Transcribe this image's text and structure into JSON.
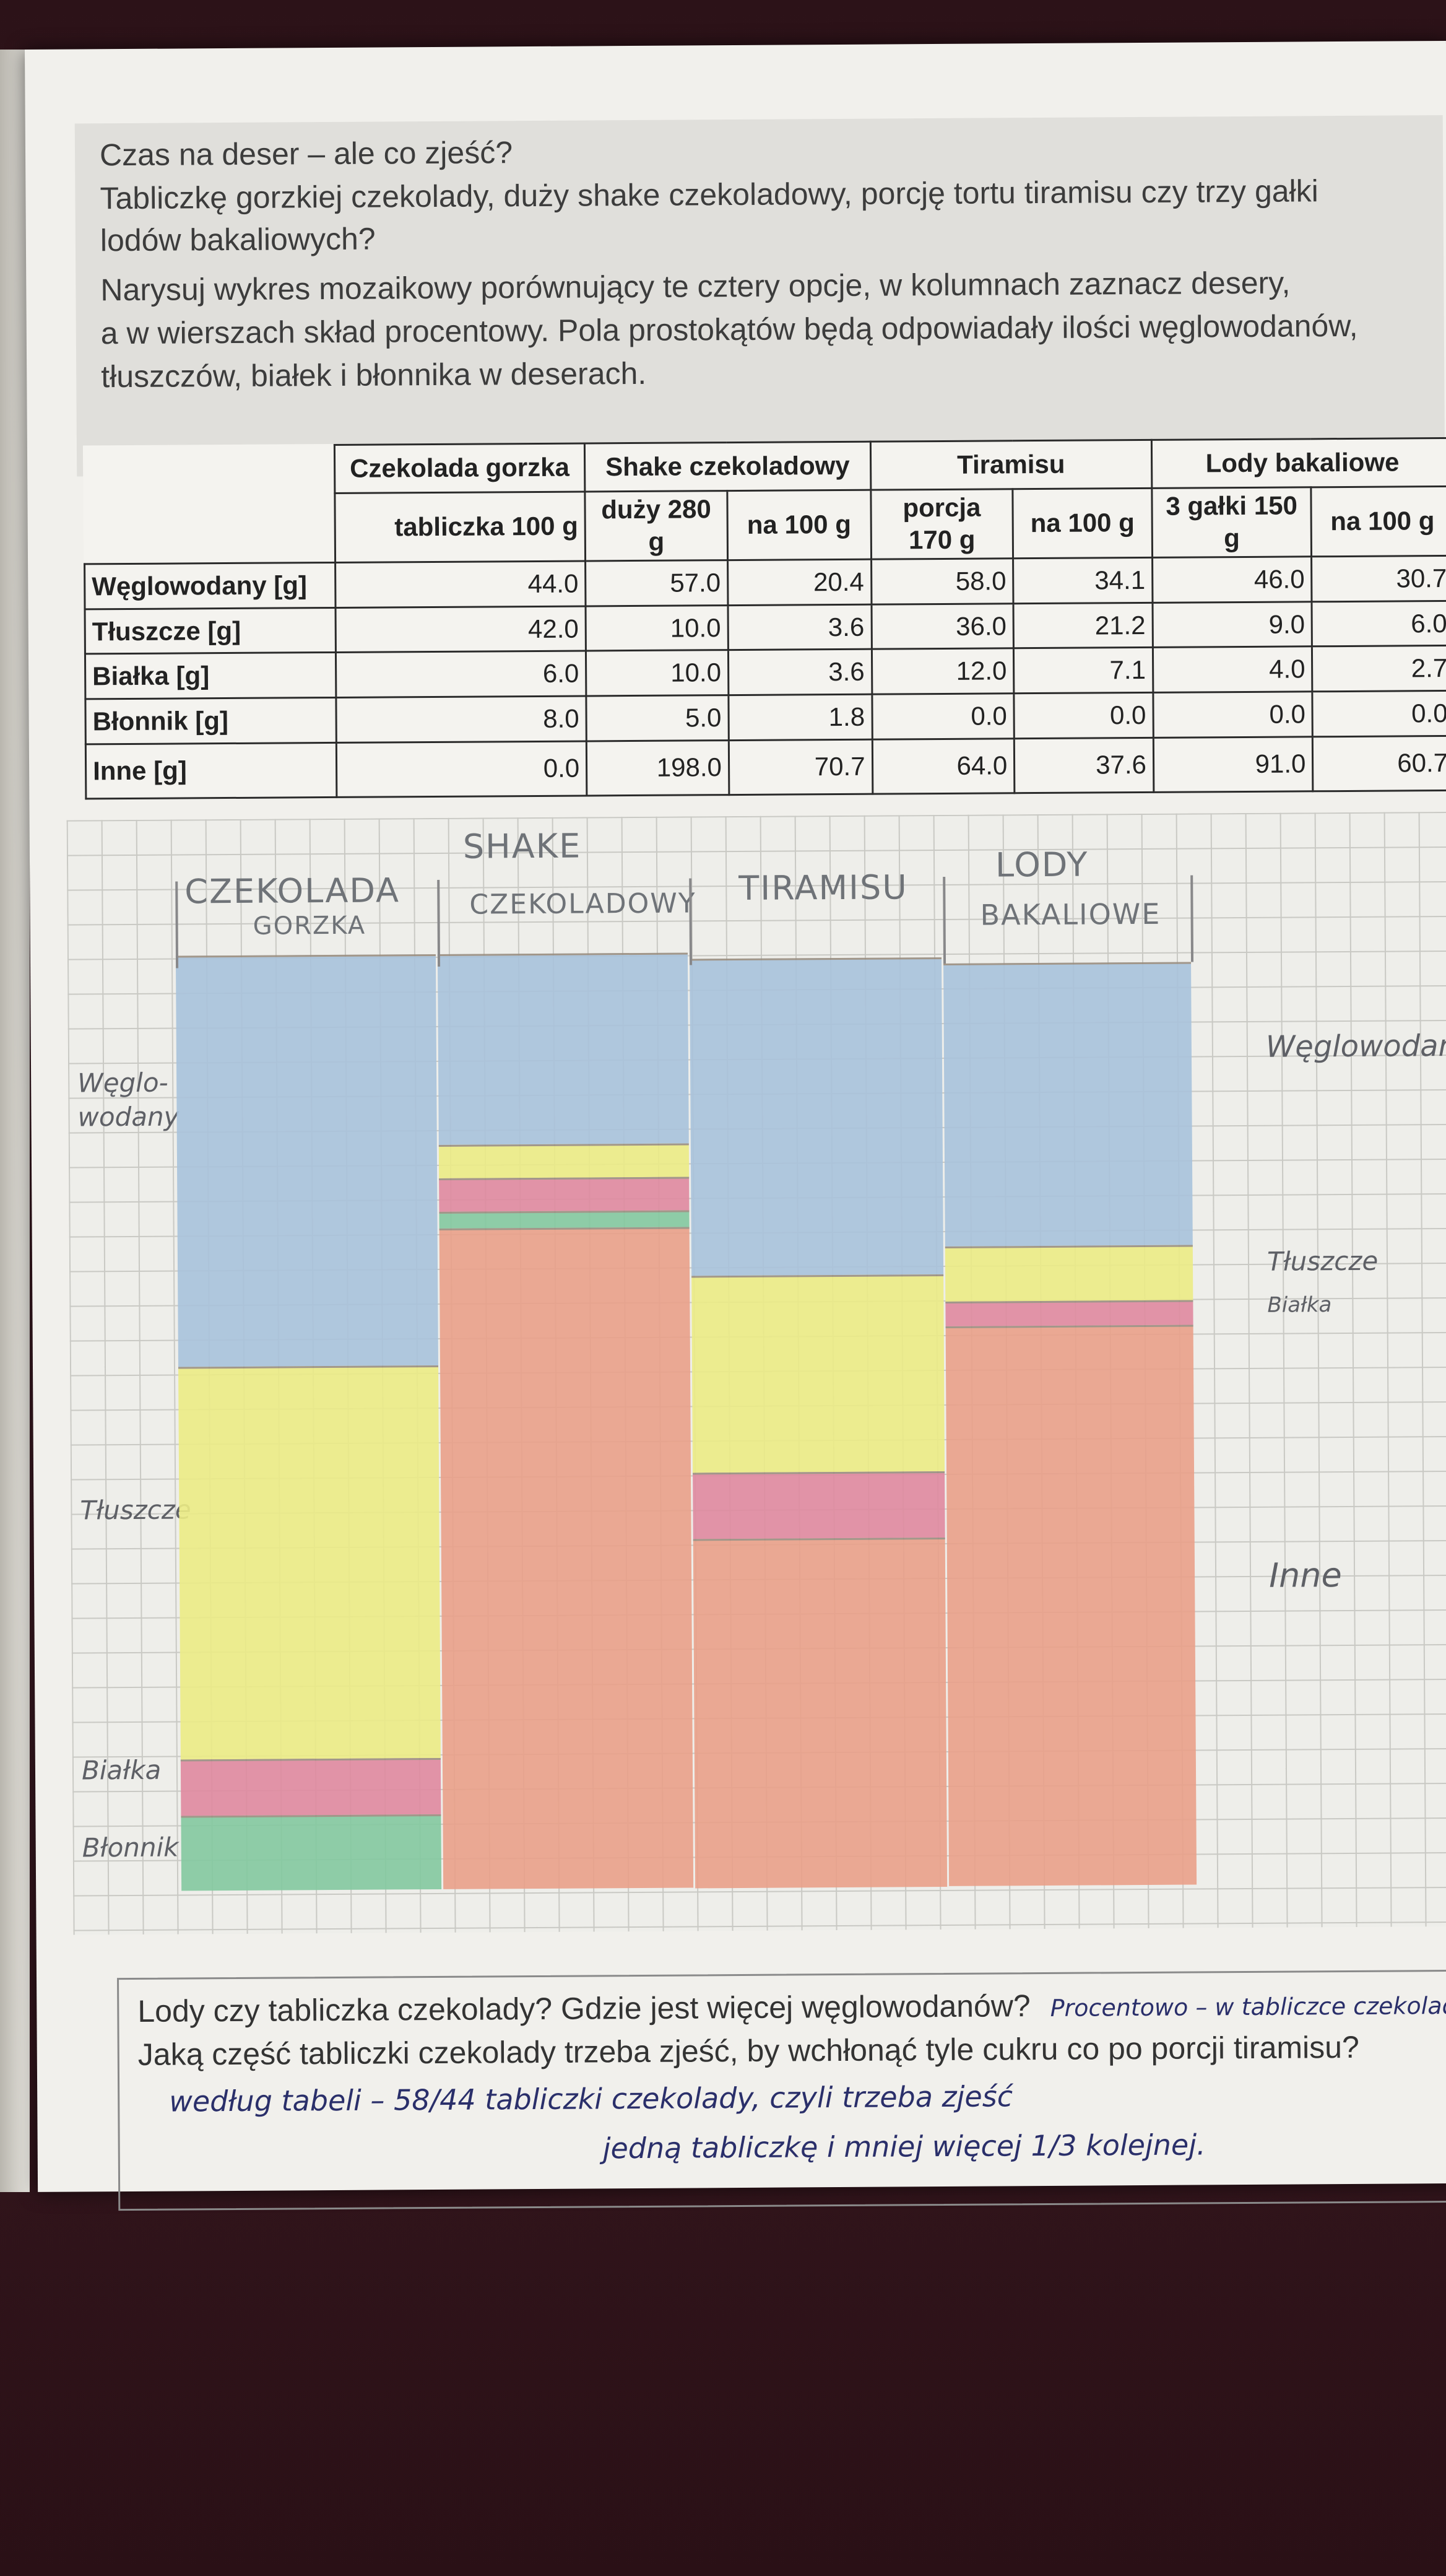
{
  "prompt": {
    "lines": [
      "Czas na deser – ale co zjeść?",
      "Tabliczkę gorzkiej czekolady, duży shake czekoladowy, porcję tortu tiramisu czy trzy gałki",
      "lodów bakaliowych?",
      "Narysuj wykres mozaikowy porównujący te cztery opcje, w kolumnach zaznacz desery,",
      "a w wierszach skład procentowy. Pola prostokątów będą odpowiadały ilości węglowodanów,",
      "tłuszczów, białek i błonnika w deserach."
    ]
  },
  "table": {
    "groups": [
      {
        "name": "Czekolada gorzka",
        "subs": [
          "tabliczka 100 g"
        ]
      },
      {
        "name": "Shake czekoladowy",
        "subs": [
          "duży 280 g",
          "na 100 g"
        ]
      },
      {
        "name": "Tiramisu",
        "subs": [
          "porcja 170 g",
          "na 100 g"
        ]
      },
      {
        "name": "Lody bakaliowe",
        "subs": [
          "3 gałki 150 g",
          "na 100 g"
        ]
      }
    ],
    "rows": [
      {
        "label": "Węglowodany [g]",
        "values": [
          "44.0",
          "57.0",
          "20.4",
          "58.0",
          "34.1",
          "46.0",
          "30.7"
        ]
      },
      {
        "label": "Tłuszcze [g]",
        "values": [
          "42.0",
          "10.0",
          "3.6",
          "36.0",
          "21.2",
          "9.0",
          "6.0"
        ]
      },
      {
        "label": "Białka [g]",
        "values": [
          "6.0",
          "10.0",
          "3.6",
          "12.0",
          "7.1",
          "4.0",
          "2.7"
        ]
      },
      {
        "label": "Błonnik [g]",
        "values": [
          "8.0",
          "5.0",
          "1.8",
          "0.0",
          "0.0",
          "0.0",
          "0.0"
        ]
      },
      {
        "label": "Inne [g]",
        "values": [
          "0.0",
          "198.0",
          "70.7",
          "64.0",
          "37.6",
          "91.0",
          "60.7"
        ]
      }
    ]
  },
  "mosaic": {
    "column_labels": [
      [
        "CZEKOLADA",
        "GORZKA"
      ],
      [
        "SHAKE",
        "CZEKOLADOWY"
      ],
      [
        "TIRAMISU"
      ],
      [
        "LODY",
        "BAKALIOWE"
      ]
    ],
    "left_labels": [
      [
        "Węglo-",
        "wodany"
      ],
      [
        "Tłuszcze"
      ],
      [
        "Białka"
      ],
      [
        "Błonnik"
      ]
    ],
    "right_labels": [
      [
        "Węglowodany"
      ],
      [
        "Tłuszcze"
      ],
      [
        "Białka"
      ],
      [
        "Inne"
      ]
    ],
    "colors": {
      "carbs": "#a9c3dc",
      "fat": "#ecec86",
      "protein": "#e08aa0",
      "fiber": "#84c9a0",
      "other": "#eaa18a"
    },
    "columns": [
      {
        "segments": [
          {
            "k": "carbs",
            "v": 44.0
          },
          {
            "k": "fat",
            "v": 42.0
          },
          {
            "k": "protein",
            "v": 6.0
          },
          {
            "k": "fiber",
            "v": 8.0
          }
        ]
      },
      {
        "segments": [
          {
            "k": "carbs",
            "v": 20.4
          },
          {
            "k": "fat",
            "v": 3.6
          },
          {
            "k": "protein",
            "v": 3.6
          },
          {
            "k": "fiber",
            "v": 1.8
          },
          {
            "k": "other",
            "v": 70.7
          }
        ]
      },
      {
        "segments": [
          {
            "k": "carbs",
            "v": 34.1
          },
          {
            "k": "fat",
            "v": 21.2
          },
          {
            "k": "protein",
            "v": 7.1
          },
          {
            "k": "other",
            "v": 37.6
          }
        ]
      },
      {
        "segments": [
          {
            "k": "carbs",
            "v": 30.7
          },
          {
            "k": "fat",
            "v": 6.0
          },
          {
            "k": "protein",
            "v": 2.7
          },
          {
            "k": "other",
            "v": 60.7
          }
        ]
      }
    ]
  },
  "question": {
    "line1": "Lody czy tabliczka czekolady? Gdzie jest więcej węglowodanów?",
    "line1_answer": "Procentowo – w tabliczce czekolady",
    "line2": "Jaką część tabliczki czekolady trzeba zjeść, by wchłonąć tyle cukru co po porcji tiramisu?",
    "answer_line1": "według tabeli – 58/44 tabliczki czekolady, czyli trzeba zjeść",
    "answer_line2": "jedną tabliczkę i mniej więcej 1/3 kolejnej."
  }
}
